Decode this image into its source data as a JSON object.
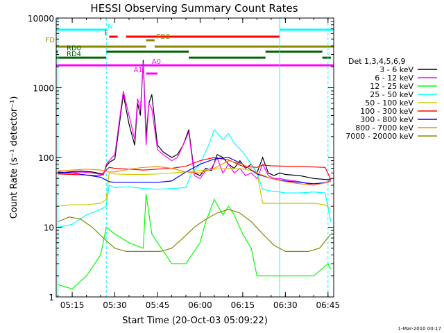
{
  "chart_data": {
    "type": "line",
    "title": "HESSI Observing Summary Count Rates",
    "xlabel": "Start Time (20-Oct-03 05:09:22)",
    "ylabel": "Count Rate (s⁻¹ detector⁻¹)",
    "x_scale": "time",
    "y_scale": "log",
    "xlim": [
      "05:09:22",
      "06:47:00"
    ],
    "ylim": [
      1,
      10000
    ],
    "x_ticks": [
      "05:15",
      "05:30",
      "05:45",
      "06:00",
      "06:15",
      "06:30",
      "06:45"
    ],
    "y_ticks": [
      "1",
      "10",
      "100",
      "1000",
      "10000"
    ],
    "grid": false,
    "legend": {
      "placement": "right",
      "title": "Det 1,3,4,5,6,9"
    },
    "timestamp": "1-Mar-2010 00:17",
    "series": [
      {
        "name": "3 - 6 keV",
        "color": "#000000",
        "x": [
          "05:10",
          "05:14",
          "05:18",
          "05:22",
          "05:26",
          "05:27",
          "05:28",
          "05:30",
          "05:33",
          "05:35",
          "05:37",
          "05:38",
          "05:39",
          "05:40",
          "05:41",
          "05:42",
          "05:43",
          "05:45",
          "05:47",
          "05:50",
          "05:52",
          "05:54",
          "05:56",
          "05:58",
          "06:00",
          "06:02",
          "06:04",
          "06:06",
          "06:08",
          "06:10",
          "06:12",
          "06:14",
          "06:16",
          "06:18",
          "06:20",
          "06:22",
          "06:24",
          "06:26",
          "06:28",
          "06:30",
          "06:35",
          "06:40",
          "06:45",
          "06:46"
        ],
        "values": [
          60,
          62,
          64,
          62,
          58,
          75,
          85,
          95,
          800,
          300,
          150,
          600,
          400,
          2500,
          200,
          600,
          800,
          150,
          120,
          100,
          110,
          150,
          250,
          60,
          55,
          70,
          65,
          110,
          100,
          80,
          70,
          90,
          70,
          80,
          60,
          100,
          60,
          55,
          60,
          57,
          55,
          50,
          48,
          50
        ]
      },
      {
        "name": "6 - 12 keV",
        "color": "#ff00ff",
        "x": [
          "05:10",
          "05:14",
          "05:18",
          "05:22",
          "05:26",
          "05:27",
          "05:28",
          "05:30",
          "05:33",
          "05:35",
          "05:37",
          "05:38",
          "05:39",
          "05:40",
          "05:41",
          "05:42",
          "05:43",
          "05:45",
          "05:47",
          "05:50",
          "05:52",
          "05:54",
          "05:56",
          "05:58",
          "06:00",
          "06:02",
          "06:04",
          "06:06",
          "06:08",
          "06:10",
          "06:12",
          "06:14",
          "06:16",
          "06:18",
          "06:20",
          "06:22",
          "06:24",
          "06:26",
          "06:28",
          "06:30",
          "06:35",
          "06:40",
          "06:45",
          "06:46"
        ],
        "values": [
          58,
          60,
          62,
          60,
          56,
          80,
          90,
          110,
          900,
          400,
          180,
          700,
          500,
          2300,
          150,
          600,
          500,
          130,
          110,
          90,
          100,
          150,
          230,
          55,
          50,
          65,
          70,
          100,
          60,
          80,
          60,
          70,
          55,
          60,
          50,
          80,
          55,
          50,
          50,
          48,
          45,
          40,
          45,
          48
        ]
      },
      {
        "name": "12 - 25 keV",
        "color": "#00ff00",
        "x": [
          "05:10",
          "05:15",
          "05:20",
          "05:25",
          "05:27",
          "05:30",
          "05:35",
          "05:40",
          "05:41",
          "05:43",
          "05:45",
          "05:50",
          "05:55",
          "06:00",
          "06:02",
          "06:05",
          "06:08",
          "06:10",
          "06:12",
          "06:15",
          "06:18",
          "06:20",
          "06:25",
          "06:30",
          "06:35",
          "06:40",
          "06:45",
          "06:46"
        ],
        "values": [
          1.5,
          1.3,
          2,
          4,
          10,
          8,
          6,
          5,
          30,
          8,
          6,
          3,
          3,
          6,
          12,
          25,
          15,
          20,
          15,
          8,
          5,
          2,
          2,
          2,
          2,
          2,
          3,
          2.5
        ]
      },
      {
        "name": "25 - 50 keV",
        "color": "#00ffff",
        "x": [
          "05:10",
          "05:15",
          "05:20",
          "05:25",
          "05:27",
          "05:28",
          "05:30",
          "05:35",
          "05:40",
          "05:45",
          "05:50",
          "05:55",
          "05:57",
          "06:00",
          "06:03",
          "06:05",
          "06:08",
          "06:10",
          "06:12",
          "06:15",
          "06:18",
          "06:20",
          "06:22",
          "06:25",
          "06:28",
          "06:30",
          "06:35",
          "06:40",
          "06:44",
          "06:46"
        ],
        "values": [
          10,
          11,
          15,
          18,
          20,
          40,
          37,
          38,
          36,
          35,
          36,
          37,
          60,
          80,
          150,
          250,
          180,
          220,
          160,
          120,
          80,
          60,
          35,
          33,
          32,
          31,
          31,
          32,
          31,
          12
        ]
      },
      {
        "name": "50 - 100 keV",
        "color": "#cccc00",
        "x": [
          "05:10",
          "05:15",
          "05:20",
          "05:25",
          "05:27",
          "05:28",
          "05:30",
          "05:35",
          "05:40",
          "05:45",
          "05:50",
          "05:55",
          "06:00",
          "06:05",
          "06:10",
          "06:15",
          "06:18",
          "06:20",
          "06:22",
          "06:25",
          "06:30",
          "06:35",
          "06:40",
          "06:44",
          "06:46"
        ],
        "values": [
          20,
          21,
          21,
          22,
          25,
          60,
          58,
          57,
          57,
          58,
          60,
          62,
          65,
          68,
          70,
          68,
          65,
          62,
          22,
          22,
          22,
          22,
          22,
          21,
          18
        ]
      },
      {
        "name": "100 - 300 keV",
        "color": "#ff0000",
        "x": [
          "05:10",
          "05:15",
          "05:20",
          "05:25",
          "05:28",
          "05:30",
          "05:35",
          "05:40",
          "05:45",
          "05:50",
          "05:55",
          "06:00",
          "06:05",
          "06:10",
          "06:15",
          "06:20",
          "06:22",
          "06:25",
          "06:30",
          "06:35",
          "06:40",
          "06:44",
          "06:46"
        ],
        "values": [
          58,
          57,
          56,
          55,
          72,
          70,
          68,
          66,
          68,
          70,
          75,
          90,
          100,
          92,
          75,
          72,
          78,
          76,
          75,
          74,
          73,
          72,
          48
        ]
      },
      {
        "name": "300 - 800 keV",
        "color": "#0000ff",
        "x": [
          "05:10",
          "05:15",
          "05:20",
          "05:25",
          "05:28",
          "05:30",
          "05:35",
          "05:40",
          "05:45",
          "05:50",
          "05:55",
          "06:00",
          "06:05",
          "06:10",
          "06:15",
          "06:20",
          "06:25",
          "06:30",
          "06:35",
          "06:40",
          "06:45",
          "06:46"
        ],
        "values": [
          62,
          60,
          56,
          52,
          45,
          44,
          44,
          44,
          44,
          46,
          62,
          80,
          95,
          100,
          80,
          58,
          50,
          46,
          44,
          42,
          44,
          46
        ]
      },
      {
        "name": "800 - 7000 keV",
        "color": "#ff8800",
        "x": [
          "05:10",
          "05:15",
          "05:20",
          "05:25",
          "05:28",
          "05:30",
          "05:35",
          "05:40",
          "05:45",
          "05:50",
          "05:55",
          "06:00",
          "06:05",
          "06:10",
          "06:15",
          "06:20",
          "06:25",
          "06:30",
          "06:35",
          "06:40",
          "06:45",
          "06:46"
        ],
        "values": [
          64,
          66,
          68,
          66,
          62,
          62,
          68,
          72,
          74,
          70,
          62,
          60,
          70,
          90,
          80,
          60,
          50,
          45,
          42,
          40,
          44,
          46
        ]
      },
      {
        "name": "7000 - 20000 keV",
        "color": "#888800",
        "x": [
          "05:10",
          "05:14",
          "05:18",
          "05:22",
          "05:26",
          "05:30",
          "05:34",
          "05:38",
          "05:42",
          "05:46",
          "05:50",
          "05:54",
          "05:58",
          "06:02",
          "06:06",
          "06:10",
          "06:14",
          "06:18",
          "06:22",
          "06:26",
          "06:30",
          "06:34",
          "06:38",
          "06:42",
          "06:46"
        ],
        "values": [
          12,
          14,
          13,
          10,
          7,
          5,
          4.5,
          4.5,
          4.5,
          4.5,
          5,
          7,
          10,
          13,
          16,
          18,
          16,
          12,
          8,
          5.5,
          4.5,
          4.5,
          4.5,
          5,
          8
        ]
      }
    ],
    "vertical_lines": [
      {
        "x": "05:10",
        "style": "solid",
        "color": "#00ffff"
      },
      {
        "x": "05:27",
        "style": "dashed",
        "color": "#00ffff"
      },
      {
        "x": "06:28",
        "style": "solid",
        "color": "#00ffff"
      },
      {
        "x": "06:45",
        "style": "dashed",
        "color": "#00ffff"
      }
    ],
    "flag_bars": [
      {
        "label": "N",
        "color": "#00ffff",
        "y": 6800,
        "segments": [
          [
            "05:09",
            "05:27"
          ],
          [
            "06:28",
            "06:47"
          ]
        ]
      },
      {
        "label": "F",
        "color": "#ff0000",
        "y": 5400,
        "segments": [
          [
            "05:28",
            "05:31"
          ],
          [
            "05:34",
            "06:28"
          ]
        ]
      },
      {
        "label": "FD",
        "color": "#888800",
        "y": 3900,
        "segments": [
          [
            "05:09",
            "05:41"
          ],
          [
            "05:44",
            "06:47"
          ]
        ]
      },
      {
        "label": "FD2",
        "color": "#888800",
        "y": 4800,
        "segments": [
          [
            "05:41",
            "05:44"
          ]
        ]
      },
      {
        "label": "RD0",
        "color": "#006600",
        "y": 3300,
        "segments": [
          [
            "05:09",
            "05:10"
          ],
          [
            "05:27",
            "05:56"
          ],
          [
            "06:23",
            "06:43"
          ]
        ]
      },
      {
        "label": "RD4",
        "color": "#006600",
        "y": 2700,
        "segments": [
          [
            "05:09",
            "05:27"
          ],
          [
            "05:56",
            "06:23"
          ],
          [
            "06:43",
            "06:46"
          ]
        ]
      },
      {
        "label": "A1",
        "color": "#ff00ff",
        "y": 1600,
        "segments": [
          [
            "05:41",
            "05:45"
          ]
        ]
      },
      {
        "label": "A0",
        "color": "#ff00ff",
        "y": 2100,
        "segments": [
          [
            "05:09",
            "06:47"
          ]
        ]
      }
    ]
  }
}
